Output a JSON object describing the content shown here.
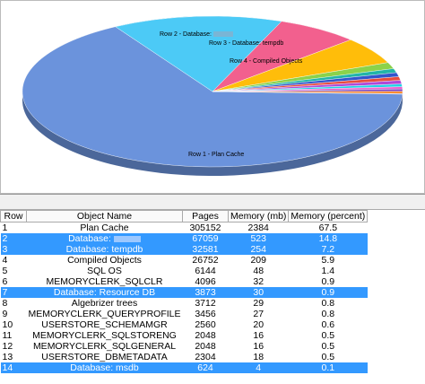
{
  "chart_data": {
    "type": "pie",
    "start_angle": 92,
    "labels": [
      "Row 1 - Plan Cache",
      "Row 2 - Database:",
      "Row 3 - Database: tempdb",
      "Row 4 - Compiled Objects",
      null,
      null,
      null,
      null,
      null,
      null,
      null,
      null,
      null,
      null
    ],
    "values": [
      67.5,
      14.8,
      7.2,
      5.9,
      1.4,
      0.9,
      0.9,
      0.8,
      0.8,
      0.6,
      0.5,
      0.5,
      0.5,
      0.1
    ],
    "colors": [
      "#6b93dc",
      "#4ccaf6",
      "#f2608e",
      "#ffbd0a",
      "#8bd24a",
      "#22b5a8",
      "#3355cc",
      "#e84c3d",
      "#b04ad8",
      "#1fd3e6",
      "#ee5fd0",
      "#7a3fb8",
      "#ff8a2a",
      "#2a2a8a"
    ]
  },
  "table": {
    "columns": [
      "Row",
      "Object Name",
      "Pages",
      "Memory (mb)",
      "Memory (percent)"
    ],
    "rows": [
      [
        "1",
        "Plan Cache",
        "305152",
        "2384",
        "67.5"
      ],
      [
        "2",
        "Database:",
        "67059",
        "523",
        "14.8"
      ],
      [
        "3",
        "Database: tempdb",
        "32581",
        "254",
        "7.2"
      ],
      [
        "4",
        "Compiled Objects",
        "26752",
        "209",
        "5.9"
      ],
      [
        "5",
        "SQL OS",
        "6144",
        "48",
        "1.4"
      ],
      [
        "6",
        "MEMORYCLERK_SQLCLR",
        "4096",
        "32",
        "0.9"
      ],
      [
        "7",
        "Database: Resource DB",
        "3873",
        "30",
        "0.9"
      ],
      [
        "8",
        "Algebrizer trees",
        "3712",
        "29",
        "0.8"
      ],
      [
        "9",
        "MEMORYCLERK_QUERYPROFILE",
        "3456",
        "27",
        "0.8"
      ],
      [
        "10",
        "USERSTORE_SCHEMAMGR",
        "2560",
        "20",
        "0.6"
      ],
      [
        "11",
        "MEMORYCLERK_SQLSTORENG",
        "2048",
        "16",
        "0.5"
      ],
      [
        "12",
        "MEMORYCLERK_SQLGENERAL",
        "2048",
        "16",
        "0.5"
      ],
      [
        "13",
        "USERSTORE_DBMETADATA",
        "2304",
        "18",
        "0.5"
      ],
      [
        "14",
        "Database: msdb",
        "624",
        "4",
        "0.1"
      ]
    ],
    "highlight_rows": [
      1,
      2,
      6,
      13
    ],
    "highlight_color": "#3399ff"
  }
}
